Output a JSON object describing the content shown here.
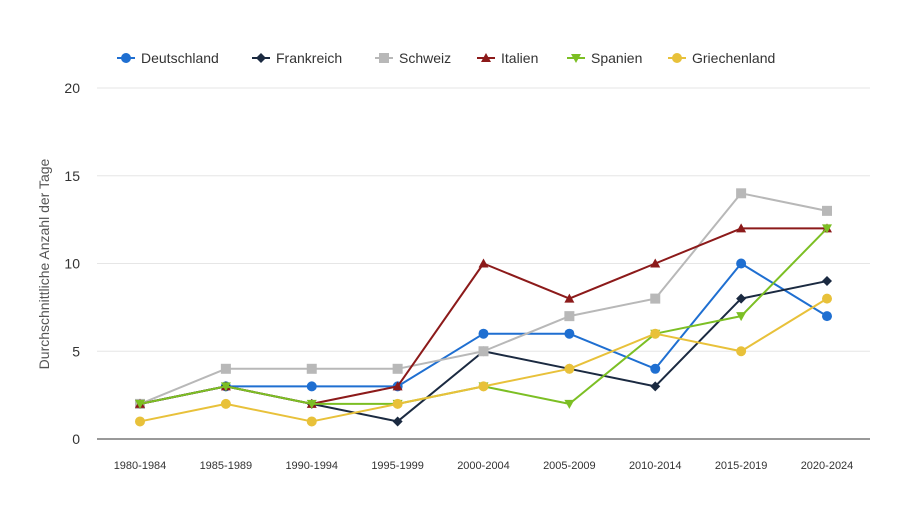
{
  "chart_data": {
    "type": "line",
    "title": "",
    "xlabel": "",
    "ylabel": "Durchschnittliche Anzahl der Tage",
    "ylim": [
      0,
      20
    ],
    "yticks": [
      0,
      5,
      10,
      15,
      20
    ],
    "grid": true,
    "legend_position": "top",
    "categories": [
      "1980-1984",
      "1985-1989",
      "1990-1994",
      "1995-1999",
      "2000-2004",
      "2005-2009",
      "2010-2014",
      "2015-2019",
      "2020-2024"
    ],
    "series": [
      {
        "name": "Deutschland",
        "color": "#1f6fd1",
        "marker": "circle",
        "values": [
          2,
          3,
          3,
          3,
          6,
          6,
          4,
          10,
          7
        ]
      },
      {
        "name": "Frankreich",
        "color": "#1b2a41",
        "marker": "diamond",
        "values": [
          2,
          3,
          2,
          1,
          5,
          4,
          3,
          8,
          9
        ]
      },
      {
        "name": "Schweiz",
        "color": "#b8b8b8",
        "marker": "square",
        "values": [
          2,
          4,
          4,
          4,
          5,
          7,
          8,
          14,
          13
        ]
      },
      {
        "name": "Italien",
        "color": "#8c1a1a",
        "marker": "triangle-up",
        "values": [
          2,
          3,
          2,
          3,
          10,
          8,
          10,
          12,
          12
        ]
      },
      {
        "name": "Spanien",
        "color": "#7cbf24",
        "marker": "triangle-down",
        "values": [
          2,
          3,
          2,
          2,
          3,
          2,
          6,
          7,
          12
        ]
      },
      {
        "name": "Griechenland",
        "color": "#e8c13a",
        "marker": "circle",
        "values": [
          1,
          2,
          1,
          2,
          3,
          4,
          6,
          5,
          8
        ]
      }
    ]
  }
}
